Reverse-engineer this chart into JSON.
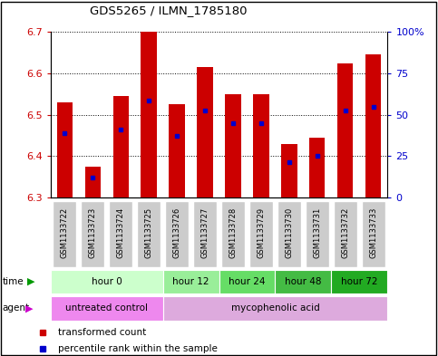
{
  "title": "GDS5265 / ILMN_1785180",
  "samples": [
    "GSM1133722",
    "GSM1133723",
    "GSM1133724",
    "GSM1133725",
    "GSM1133726",
    "GSM1133727",
    "GSM1133728",
    "GSM1133729",
    "GSM1133730",
    "GSM1133731",
    "GSM1133732",
    "GSM1133733"
  ],
  "bar_top": [
    6.53,
    6.375,
    6.545,
    6.7,
    6.525,
    6.615,
    6.55,
    6.55,
    6.43,
    6.445,
    6.625,
    6.645
  ],
  "bar_bottom": 6.3,
  "percentile_values": [
    6.455,
    6.348,
    6.465,
    6.535,
    6.45,
    6.51,
    6.48,
    6.48,
    6.385,
    6.402,
    6.51,
    6.52
  ],
  "ylim": [
    6.3,
    6.7
  ],
  "yticks_left": [
    6.3,
    6.4,
    6.5,
    6.6,
    6.7
  ],
  "yticks_right_vals": [
    0,
    25,
    50,
    75,
    100
  ],
  "yticks_right_labels": [
    "0",
    "25",
    "50",
    "75",
    "100%"
  ],
  "bar_color": "#cc0000",
  "percentile_color": "#0000cc",
  "left_tick_color": "#cc0000",
  "right_tick_color": "#0000cc",
  "time_groups": [
    {
      "label": "hour 0",
      "start": 0,
      "end": 4,
      "color": "#ccffcc"
    },
    {
      "label": "hour 12",
      "start": 4,
      "end": 6,
      "color": "#99ee99"
    },
    {
      "label": "hour 24",
      "start": 6,
      "end": 8,
      "color": "#66dd66"
    },
    {
      "label": "hour 48",
      "start": 8,
      "end": 10,
      "color": "#44bb44"
    },
    {
      "label": "hour 72",
      "start": 10,
      "end": 12,
      "color": "#22aa22"
    }
  ],
  "agent_groups": [
    {
      "label": "untreated control",
      "start": 0,
      "end": 4,
      "color": "#ee88ee"
    },
    {
      "label": "mycophenolic acid",
      "start": 4,
      "end": 12,
      "color": "#ddaadd"
    }
  ],
  "sample_box_color": "#cccccc",
  "legend_bar_color": "#cc0000",
  "legend_pct_color": "#0000cc"
}
